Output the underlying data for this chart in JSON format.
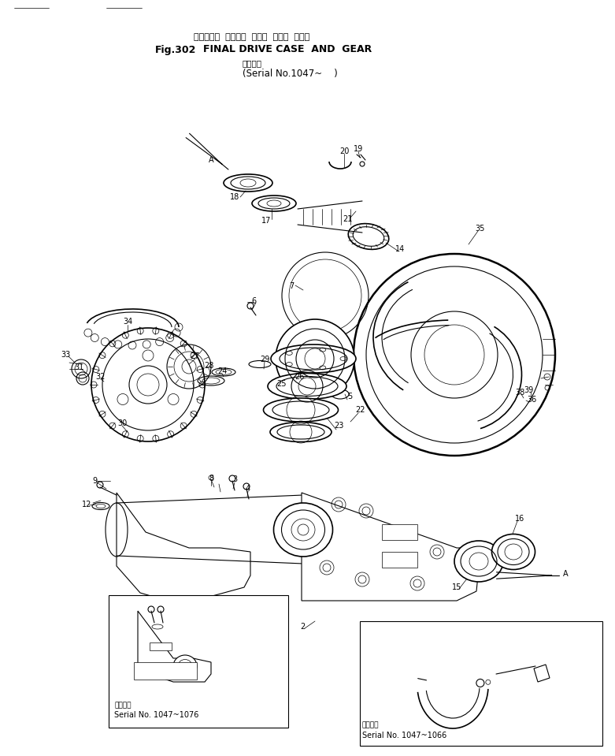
{
  "title_jp": "ファイナル  ドライブ  ケース  および  ギヤー",
  "title_fig": "Fig.302",
  "title_en": "FINAL DRIVE CASE  AND  GEAR",
  "serial_jp": "適用号機",
  "serial_en": "(Serial No.1047~    )",
  "inset1_serial_jp": "適用号機",
  "inset1_serial": "Serial No. 1047~1076",
  "inset2_serial_jp": "適用号機",
  "inset2_serial": "Serial No. 1047~1066",
  "bg_color": "#ffffff",
  "line_color": "#000000",
  "fig_width": 7.81,
  "fig_height": 9.59,
  "dpi": 100
}
